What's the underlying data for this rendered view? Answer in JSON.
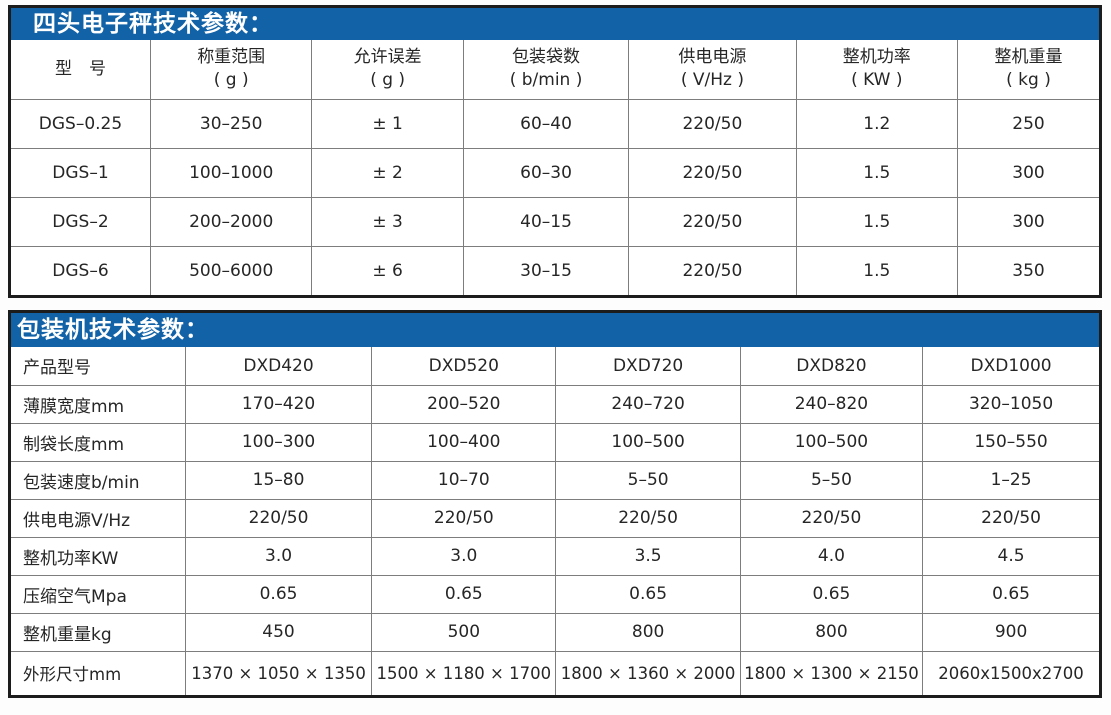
{
  "colors": {
    "title_bar_bg": "#1262a7",
    "title_text": "#ffffff",
    "outer_border": "#1c1c1c",
    "grid_line": "#7d7d7d",
    "text": "#262626",
    "table_bg": "#ffffff",
    "page_bg": "#fdfdfd"
  },
  "scale_table": {
    "title": "四头电子秤技术参数：",
    "columns": [
      "型　号",
      "称重范围\n( g )",
      "允许误差\n( g )",
      "包装袋数\n( b/min )",
      "供电电源\n( V/Hz )",
      "整机功率\n( KW )",
      "整机重量\n( kg )"
    ],
    "rows": [
      [
        "DGS–0.25",
        "30–250",
        "± 1",
        "60–40",
        "220/50",
        "1.2",
        "250"
      ],
      [
        "DGS–1",
        "100–1000",
        "± 2",
        "60–30",
        "220/50",
        "1.5",
        "300"
      ],
      [
        "DGS–2",
        "200–2000",
        "± 3",
        "40–15",
        "220/50",
        "1.5",
        "300"
      ],
      [
        "DGS–6",
        "500–6000",
        "± 6",
        "30–15",
        "220/50",
        "1.5",
        "350"
      ]
    ]
  },
  "packer_table": {
    "title": "包装机技术参数：",
    "rows": [
      {
        "label": "产品型号",
        "values": [
          "DXD420",
          "DXD520",
          "DXD720",
          "DXD820",
          "DXD1000"
        ]
      },
      {
        "label": "薄膜宽度mm",
        "values": [
          "170–420",
          "200–520",
          "240–720",
          "240–820",
          "320–1050"
        ]
      },
      {
        "label": "制袋长度mm",
        "values": [
          "100–300",
          "100–400",
          "100–500",
          "100–500",
          "150–550"
        ]
      },
      {
        "label": "包装速度b/min",
        "values": [
          "15–80",
          "10–70",
          "5–50",
          "5–50",
          "1–25"
        ]
      },
      {
        "label": "供电电源V/Hz",
        "values": [
          "220/50",
          "220/50",
          "220/50",
          "220/50",
          "220/50"
        ]
      },
      {
        "label": "整机功率KW",
        "values": [
          "3.0",
          "3.0",
          "3.5",
          "4.0",
          "4.5"
        ]
      },
      {
        "label": "压缩空气Mpa",
        "values": [
          "0.65",
          "0.65",
          "0.65",
          "0.65",
          "0.65"
        ]
      },
      {
        "label": "整机重量kg",
        "values": [
          "450",
          "500",
          "800",
          "800",
          "900"
        ]
      },
      {
        "label": "外形尺寸mm",
        "values": [
          "1370 × 1050 × 1350",
          "1500 × 1180 × 1700",
          "1800 × 1360 × 2000",
          "1800 × 1300 × 2150",
          "2060x1500x2700"
        ]
      }
    ]
  }
}
